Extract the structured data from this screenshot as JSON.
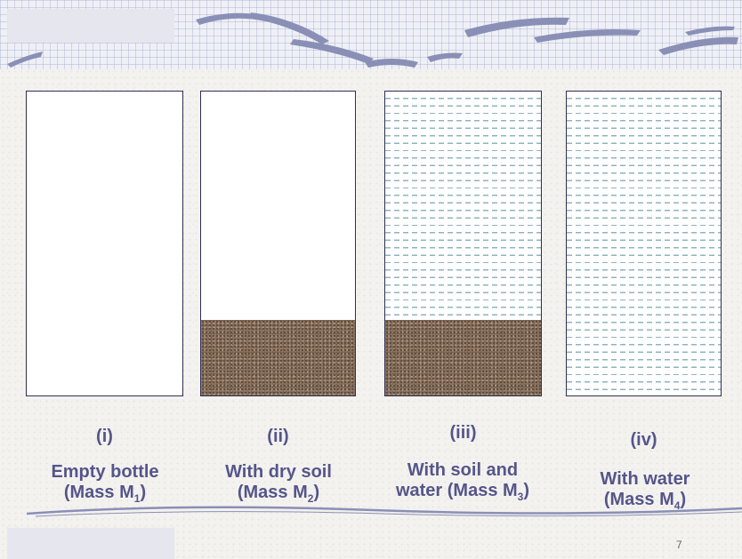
{
  "bottles": [
    {
      "numeral": "(i)",
      "line1": "Empty bottle",
      "line2_prefix": "(Mass M",
      "line2_sub": "1",
      "line2_suffix": ")"
    },
    {
      "numeral": "(ii)",
      "line1": "With dry soil",
      "line2_prefix": "(Mass M",
      "line2_sub": "2",
      "line2_suffix": ")"
    },
    {
      "numeral": "(iii)",
      "line1": "With soil and",
      "line2_prefix": "water (Mass M",
      "line2_sub": "3",
      "line2_suffix": ")"
    },
    {
      "numeral": "(iv)",
      "line1": "With water",
      "line2_prefix": "(Mass M",
      "line2_sub": "4",
      "line2_suffix": ")"
    }
  ],
  "page_number": "7",
  "colors": {
    "label_text": "#55558a",
    "bottle_outline": "#2f2f55",
    "soil": "#8b7562",
    "water_dashes": "#8fb3bf"
  }
}
